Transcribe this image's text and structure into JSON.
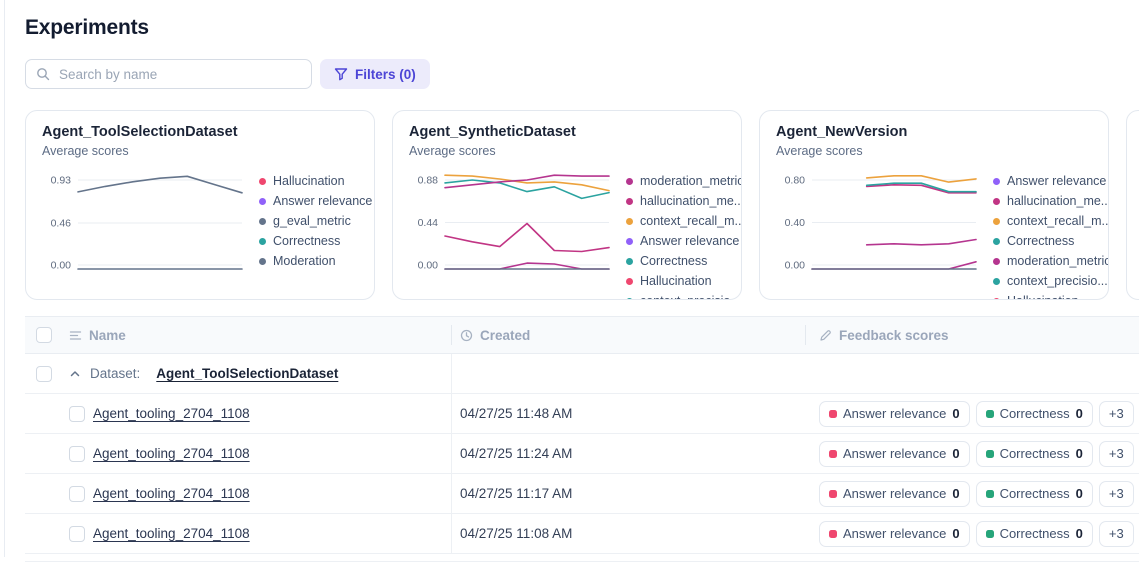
{
  "page": {
    "title": "Experiments"
  },
  "toolbar": {
    "search_placeholder": "Search by name",
    "filters_label": "Filters (0)"
  },
  "colors": {
    "accent": "#4C45D6",
    "rose": "#EF476F",
    "green": "#27A57A",
    "slate": "#64748B"
  },
  "cards": [
    {
      "title": "Agent_ToolSelectionDataset",
      "subtitle": "Average scores",
      "chart": {
        "type": "line",
        "yticks": [
          "0.93",
          "0.46",
          "0.00"
        ],
        "ylim": [
          0,
          0.97
        ],
        "series": [
          {
            "name": "g_eval_metric",
            "color": "#64748B",
            "values": [
              0.8,
              0.86,
              0.91,
              0.95,
              0.97,
              0.88,
              0.79
            ]
          },
          {
            "name": "Moderation",
            "color": "#64748B",
            "values": [
              0,
              0,
              0,
              0,
              0,
              0,
              0
            ]
          }
        ],
        "legend": [
          {
            "label": "Hallucination",
            "color": "#EF476F"
          },
          {
            "label": "Answer relevance",
            "color": "#9061F9"
          },
          {
            "label": "g_eval_metric",
            "color": "#64748B"
          },
          {
            "label": "Correctness",
            "color": "#2BA3A0"
          },
          {
            "label": "Moderation",
            "color": "#64748B"
          }
        ]
      }
    },
    {
      "title": "Agent_SyntheticDataset",
      "subtitle": "Average scores",
      "chart": {
        "type": "line",
        "yticks": [
          "0.88",
          "0.44",
          "0.00"
        ],
        "ylim": [
          0,
          0.93
        ],
        "series": [
          {
            "name": "context_recall_metric",
            "color": "#ECA23D",
            "values": [
              0.93,
              0.92,
              0.89,
              0.85,
              0.86,
              0.83,
              0.77
            ]
          },
          {
            "name": "Correctness",
            "color": "#2BA3A0",
            "values": [
              0.85,
              0.88,
              0.85,
              0.76,
              0.81,
              0.69,
              0.75
            ]
          },
          {
            "name": "moderation_metric",
            "color": "#B5358F",
            "values": [
              0.8,
              0.83,
              0.86,
              0.88,
              0.93,
              0.92,
              0.92
            ]
          },
          {
            "name": "hallucination_metric",
            "color": "#C13584",
            "values": [
              0.3,
              0.24,
              0.19,
              0.43,
              0.15,
              0.14,
              0.18
            ]
          },
          {
            "name": "Hallucination",
            "color": "#B5358F",
            "values": [
              0,
              0,
              0,
              0.02,
              0.01,
              0,
              0
            ]
          },
          {
            "name": "Answer relevance",
            "color": "#64748B",
            "values": [
              0,
              0,
              0,
              0,
              0,
              0,
              0
            ]
          }
        ],
        "legend": [
          {
            "label": "moderation_metric",
            "color": "#B5358F"
          },
          {
            "label": "hallucination_me...",
            "color": "#C13584"
          },
          {
            "label": "context_recall_m...",
            "color": "#ECA23D"
          },
          {
            "label": "Answer relevance",
            "color": "#9061F9"
          },
          {
            "label": "Correctness",
            "color": "#2BA3A0"
          },
          {
            "label": "Hallucination",
            "color": "#EF476F"
          },
          {
            "label": "context_precisio...",
            "color": "#2BA3A0"
          }
        ]
      }
    },
    {
      "title": "Agent_NewVersion",
      "subtitle": "Average scores",
      "chart": {
        "type": "line",
        "yticks": [
          "0.80",
          "0.40",
          "0.00"
        ],
        "ylim": [
          0,
          0.84
        ],
        "series": [
          {
            "name": "context_recall_metric",
            "color": "#ECA23D",
            "values": [
              null,
              null,
              0.82,
              0.84,
              0.84,
              0.78,
              0.81
            ]
          },
          {
            "name": "hallucination_metric",
            "color": "#C13584",
            "values": [
              null,
              null,
              0.74,
              0.755,
              0.75,
              0.68,
              0.68
            ]
          },
          {
            "name": "Correctness",
            "color": "#2BA3A0",
            "values": [
              null,
              null,
              0.75,
              0.77,
              0.77,
              0.69,
              0.69
            ]
          },
          {
            "name": "moderation_metric",
            "color": "#B5358F",
            "values": [
              null,
              null,
              0.19,
              0.2,
              0.19,
              0.2,
              0.24
            ]
          },
          {
            "name": "Hallucination",
            "color": "#B5358F",
            "values": [
              0,
              0,
              0,
              0,
              0,
              0,
              0.03
            ]
          },
          {
            "name": "Answer relevance",
            "color": "#64748B",
            "values": [
              0,
              0,
              0,
              0,
              0,
              0,
              0
            ]
          }
        ],
        "legend": [
          {
            "label": "Answer relevance",
            "color": "#9061F9"
          },
          {
            "label": "hallucination_me...",
            "color": "#C13584"
          },
          {
            "label": "context_recall_m...",
            "color": "#ECA23D"
          },
          {
            "label": "Correctness",
            "color": "#2BA3A0"
          },
          {
            "label": "moderation_metric",
            "color": "#B5358F"
          },
          {
            "label": "context_precisio...",
            "color": "#2BA3A0"
          },
          {
            "label": "Hallucination",
            "color": "#EF476F"
          }
        ]
      }
    }
  ],
  "table": {
    "columns": [
      {
        "label": "Name"
      },
      {
        "label": "Created"
      },
      {
        "label": "Feedback scores"
      }
    ],
    "group": {
      "label": "Dataset:",
      "dataset": "Agent_ToolSelectionDataset"
    },
    "rows": [
      {
        "name": "Agent_tooling_2704_1108",
        "created": "04/27/25 11:48 AM",
        "badges": [
          {
            "label": "Answer relevance",
            "value": "0",
            "color": "#EF476F"
          },
          {
            "label": "Correctness",
            "value": "0",
            "color": "#27A57A"
          },
          {
            "label": "+3"
          }
        ]
      },
      {
        "name": "Agent_tooling_2704_1108",
        "created": "04/27/25 11:24 AM",
        "badges": [
          {
            "label": "Answer relevance",
            "value": "0",
            "color": "#EF476F"
          },
          {
            "label": "Correctness",
            "value": "0",
            "color": "#27A57A"
          },
          {
            "label": "+3"
          }
        ]
      },
      {
        "name": "Agent_tooling_2704_1108",
        "created": "04/27/25 11:17 AM",
        "badges": [
          {
            "label": "Answer relevance",
            "value": "0",
            "color": "#EF476F"
          },
          {
            "label": "Correctness",
            "value": "0",
            "color": "#27A57A"
          },
          {
            "label": "+3"
          }
        ]
      },
      {
        "name": "Agent_tooling_2704_1108",
        "created": "04/27/25 11:08 AM",
        "badges": [
          {
            "label": "Answer relevance",
            "value": "0",
            "color": "#EF476F"
          },
          {
            "label": "Correctness",
            "value": "0",
            "color": "#27A57A"
          },
          {
            "label": "+3"
          }
        ]
      }
    ]
  }
}
